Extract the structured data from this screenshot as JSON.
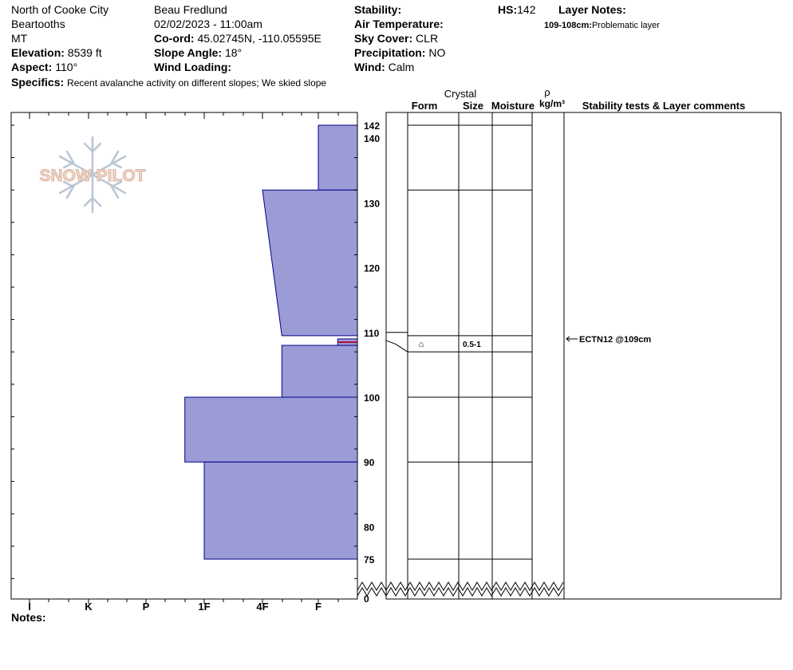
{
  "header": {
    "location": "North of Cooke City",
    "range": "Beartooths",
    "state": "MT",
    "elevation_label": "Elevation:",
    "elevation": "8539 ft",
    "aspect_label": "Aspect:",
    "aspect": "110°",
    "observer": "Beau  Fredlund",
    "datetime": "02/02/2023 - 11:00am",
    "coord_label": "Co-ord:",
    "coord": "45.02745N, -110.05595E",
    "slope_label": "Slope Angle:",
    "slope": "18°",
    "wind_loading_label": "Wind Loading:",
    "wind_loading": "",
    "stability_label": "Stability:",
    "stability": "",
    "air_temp_label": "Air Temperature:",
    "air_temp": "",
    "sky_label": "Sky Cover:",
    "sky": "CLR",
    "precip_label": "Precipitation:",
    "precip": "NO",
    "wind_label": "Wind:",
    "wind": "Calm",
    "hs_label": "HS:",
    "hs": "142",
    "layer_notes_label": "Layer Notes:",
    "layer_note_range": "109-108cm:",
    "layer_note_text": "Problematic layer",
    "specifics_label": "Specifics:",
    "specifics": "Recent avalanche activity on different slopes; We skied slope",
    "notes_label": "Notes:"
  },
  "columns": {
    "crystal": "Crystal",
    "form": "Form",
    "size": "Size",
    "moisture": "Moisture",
    "rho": "ρ",
    "density_unit": "kg/m³",
    "stability_comments": "Stability tests & Layer comments"
  },
  "logo_text": "SNOW PILOT",
  "colors": {
    "layer_fill": "#9b9bd6",
    "layer_stroke": "#00008b",
    "weak_layer": "#b0103a"
  },
  "chart_data": {
    "type": "snow_profile",
    "x_axis": {
      "ticks": [
        "I",
        "K",
        "P",
        "1F",
        "4F",
        "F"
      ]
    },
    "y_axis": {
      "ticks": [
        142,
        140,
        130,
        120,
        110,
        100,
        90,
        80,
        75,
        0
      ],
      "unit": "cm",
      "axis_break_between": [
        0,
        75
      ]
    },
    "layers": [
      {
        "top": 142,
        "bottom": 132,
        "hardness_top": "F",
        "hardness_bottom": "F"
      },
      {
        "top": 132,
        "bottom": 109.5,
        "hardness_top": "4F",
        "hardness_bottom": "4F-"
      },
      {
        "top": 109,
        "bottom": 108,
        "hardness_top": "F-",
        "hardness_bottom": "F-",
        "weak_layer": true
      },
      {
        "top": 108,
        "bottom": 100,
        "hardness_top": "4F-",
        "hardness_bottom": "4F-"
      },
      {
        "top": 100,
        "bottom": 90,
        "hardness_top": "1F+",
        "hardness_bottom": "1F+"
      },
      {
        "top": 90,
        "bottom": 75,
        "hardness_top": "1F",
        "hardness_bottom": "1F"
      }
    ],
    "layer_boundaries": [
      142,
      132,
      109.5,
      107,
      100,
      90,
      75
    ],
    "grain": {
      "top": 109.5,
      "bottom": 107,
      "form_symbol": "⌂",
      "size": "0.5-1"
    },
    "stability_tests": [
      {
        "depth": 109,
        "label": "ECTN12 @109cm"
      }
    ]
  }
}
